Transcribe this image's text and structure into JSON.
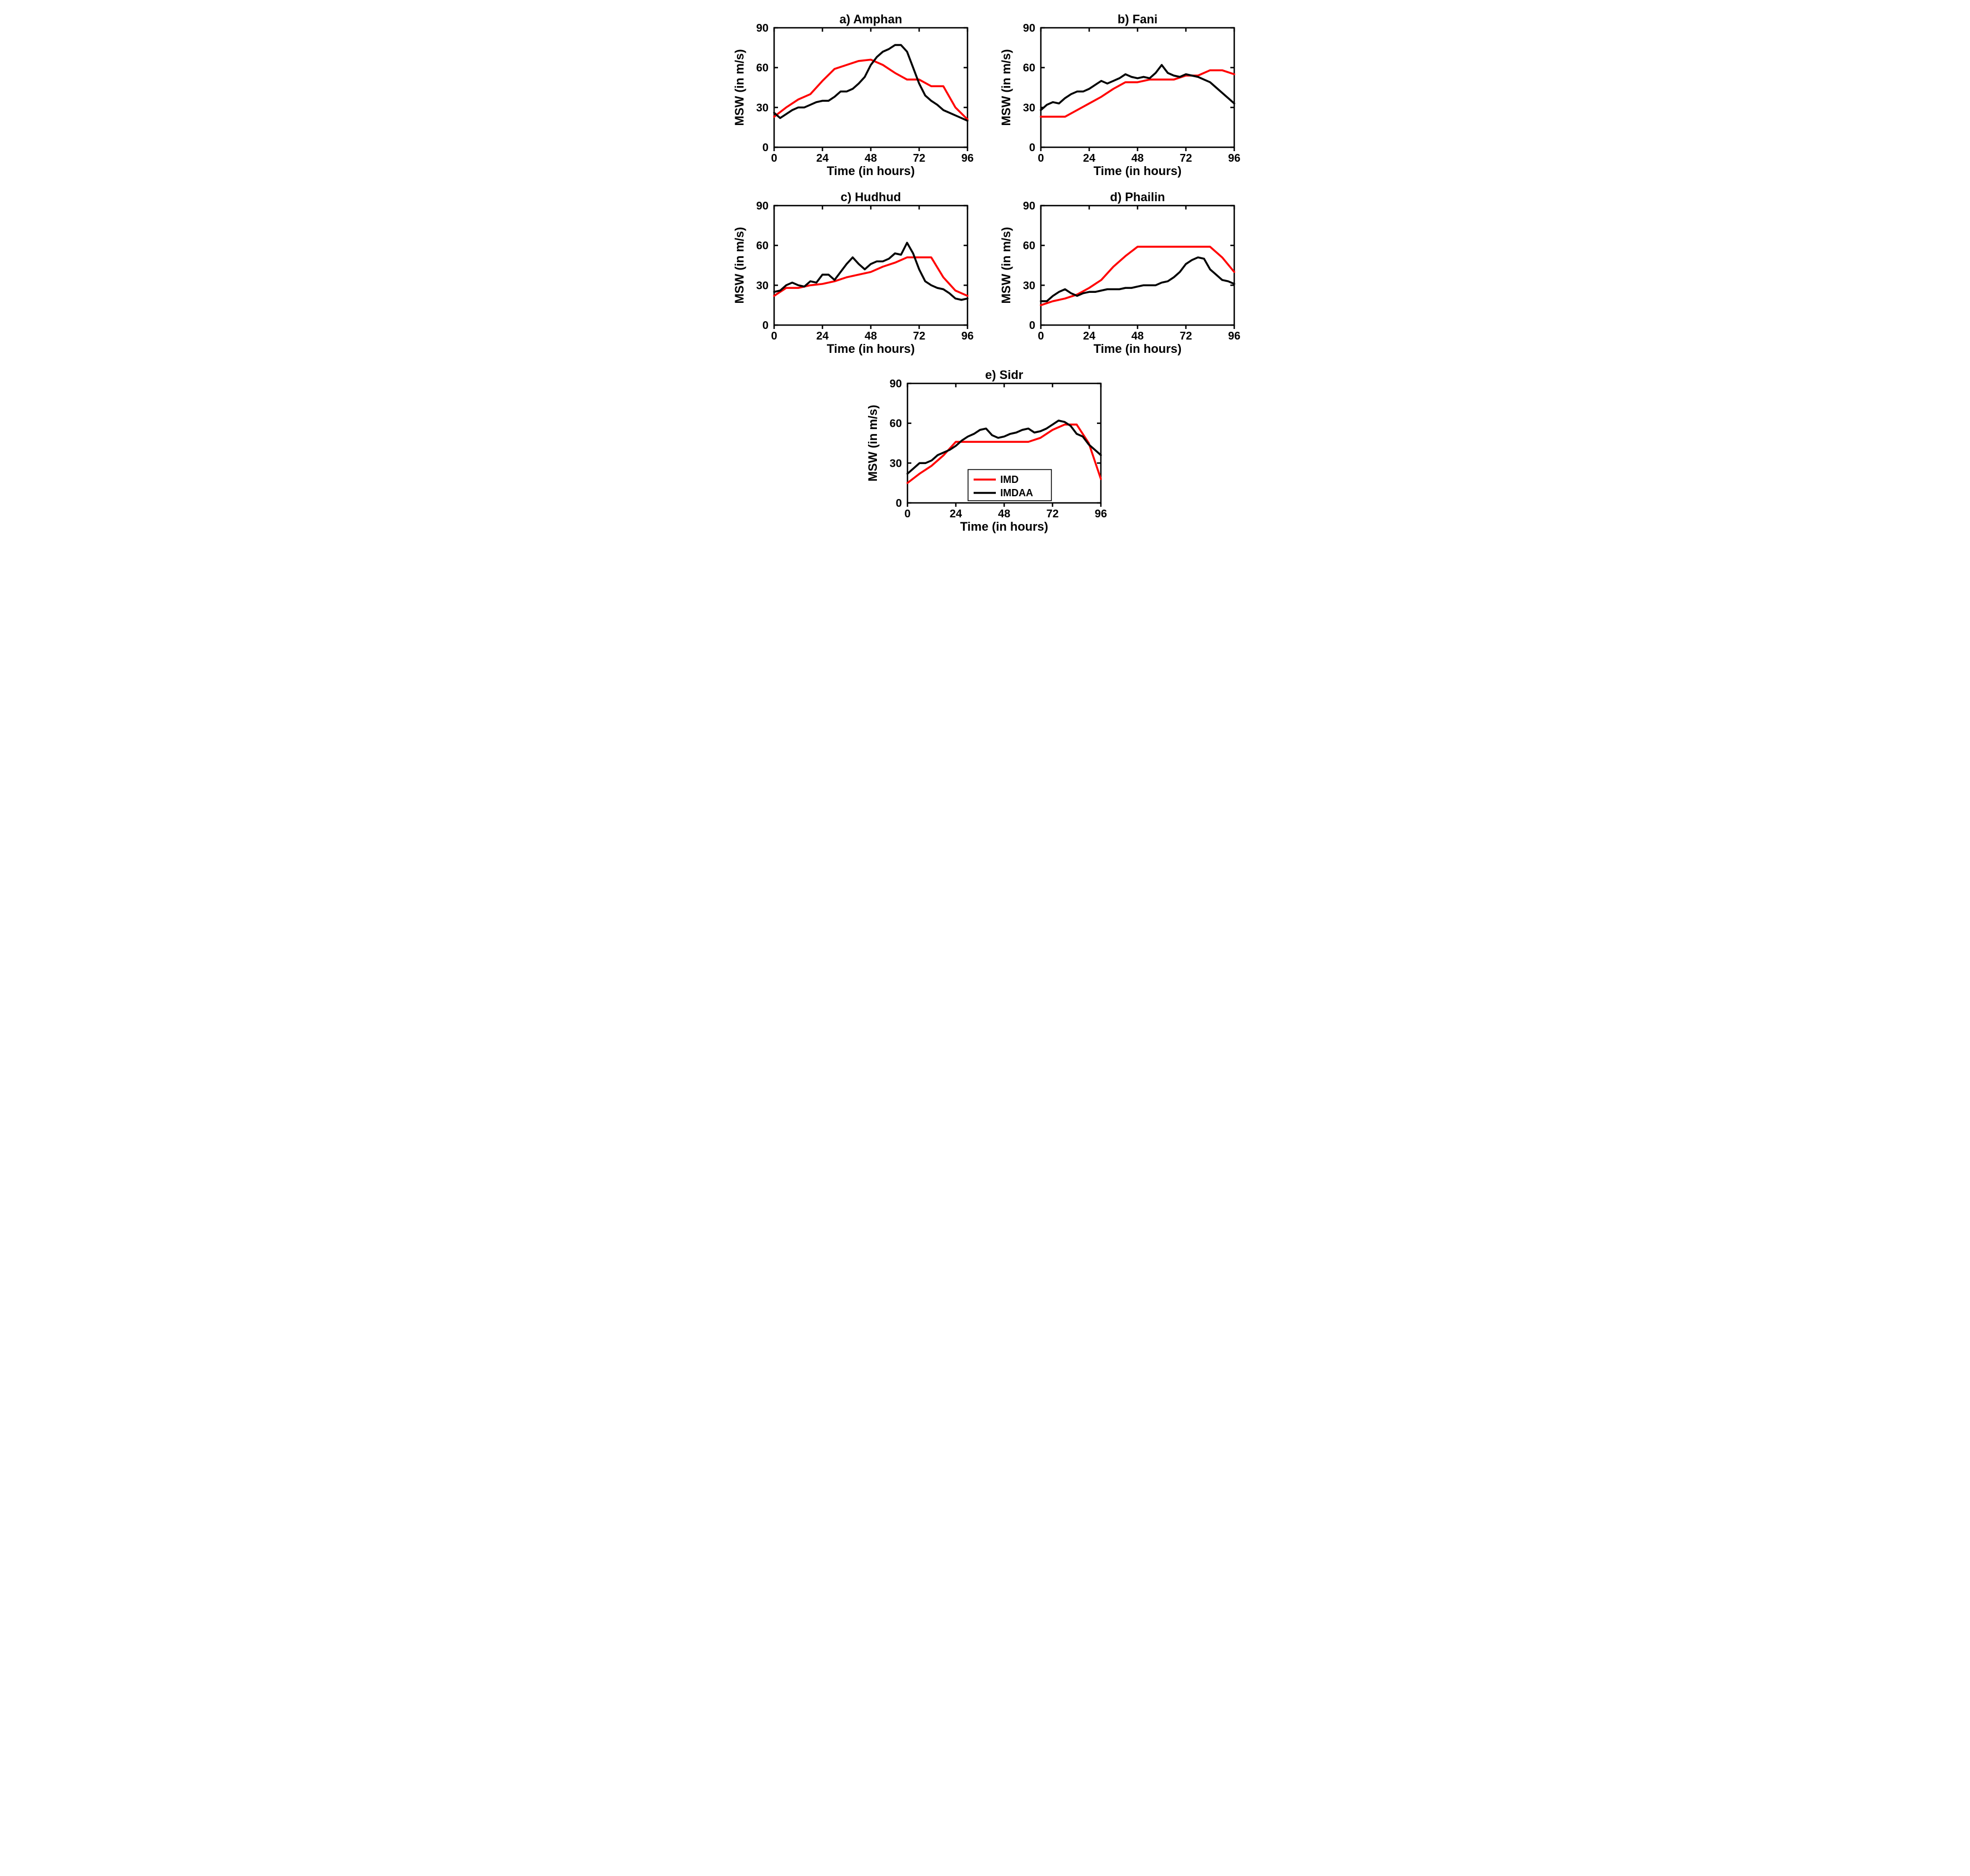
{
  "global": {
    "xlabel": "Time (in hours)",
    "ylabel": "MSW (in m/s)",
    "xlim": [
      0,
      96
    ],
    "ylim": [
      0,
      90
    ],
    "xtick_step": 24,
    "ytick_step": 30,
    "axis_color": "#000000",
    "background_color": "#ffffff",
    "line_width": 3.5,
    "axis_line_width": 2.5,
    "tick_fontsize": 20,
    "label_fontsize": 22,
    "title_fontsize": 22,
    "title_fontweight": "bold",
    "label_fontweight": "bold",
    "font_family": "Arial, Helvetica, sans-serif"
  },
  "series_meta": {
    "imd": {
      "label": "IMD",
      "color": "#ff0000"
    },
    "imdaa": {
      "label": "IMDAA",
      "color": "#000000"
    }
  },
  "legend": {
    "panel": "e",
    "box_stroke": "#000000",
    "box_fill": "#ffffff"
  },
  "panel_order": [
    "a",
    "b",
    "c",
    "d",
    "e"
  ],
  "panels": {
    "a": {
      "title": "a) Amphan",
      "imd": {
        "x": [
          0,
          6,
          12,
          18,
          24,
          30,
          36,
          42,
          48,
          54,
          60,
          66,
          72,
          78,
          84,
          90,
          96
        ],
        "y": [
          23,
          30,
          36,
          40,
          50,
          59,
          62,
          65,
          66,
          62,
          56,
          51,
          51,
          46,
          46,
          30,
          21
        ]
      },
      "imdaa": {
        "x": [
          0,
          3,
          6,
          9,
          12,
          15,
          18,
          21,
          24,
          27,
          30,
          33,
          36,
          39,
          42,
          45,
          48,
          51,
          54,
          57,
          60,
          63,
          66,
          69,
          72,
          75,
          78,
          81,
          84,
          87,
          90,
          93,
          96
        ],
        "y": [
          26,
          22,
          25,
          28,
          30,
          30,
          32,
          34,
          35,
          35,
          38,
          42,
          42,
          44,
          48,
          53,
          62,
          68,
          72,
          74,
          77,
          77,
          72,
          60,
          48,
          39,
          35,
          32,
          28,
          26,
          24,
          22,
          20
        ]
      }
    },
    "b": {
      "title": "b) Fani",
      "imd": {
        "x": [
          0,
          6,
          12,
          18,
          24,
          30,
          36,
          42,
          48,
          54,
          60,
          66,
          72,
          78,
          84,
          90,
          96
        ],
        "y": [
          23,
          23,
          23,
          28,
          33,
          38,
          44,
          49,
          49,
          51,
          51,
          51,
          54,
          54,
          58,
          58,
          55
        ]
      },
      "imdaa": {
        "x": [
          0,
          3,
          6,
          9,
          12,
          15,
          18,
          21,
          24,
          27,
          30,
          33,
          36,
          39,
          42,
          45,
          48,
          51,
          54,
          57,
          60,
          63,
          66,
          69,
          72,
          75,
          78,
          81,
          84,
          87,
          90,
          93,
          96
        ],
        "y": [
          28,
          32,
          34,
          33,
          37,
          40,
          42,
          42,
          44,
          47,
          50,
          48,
          50,
          52,
          55,
          53,
          52,
          53,
          52,
          56,
          62,
          56,
          54,
          53,
          55,
          54,
          53,
          51,
          49,
          45,
          41,
          37,
          33
        ]
      }
    },
    "c": {
      "title": "c) Hudhud",
      "imd": {
        "x": [
          0,
          6,
          12,
          18,
          24,
          30,
          36,
          42,
          48,
          54,
          60,
          66,
          72,
          78,
          84,
          90,
          96
        ],
        "y": [
          22,
          28,
          28,
          30,
          31,
          33,
          36,
          38,
          40,
          44,
          47,
          51,
          51,
          51,
          36,
          26,
          22
        ]
      },
      "imdaa": {
        "x": [
          0,
          3,
          6,
          9,
          12,
          15,
          18,
          21,
          24,
          27,
          30,
          33,
          36,
          39,
          42,
          45,
          48,
          51,
          54,
          57,
          60,
          63,
          66,
          69,
          72,
          75,
          78,
          81,
          84,
          87,
          90,
          93,
          96
        ],
        "y": [
          25,
          26,
          30,
          32,
          30,
          29,
          33,
          32,
          38,
          38,
          34,
          40,
          46,
          51,
          46,
          42,
          46,
          48,
          48,
          50,
          54,
          53,
          62,
          54,
          42,
          33,
          30,
          28,
          27,
          24,
          20,
          19,
          20
        ]
      }
    },
    "d": {
      "title": "d) Phailin",
      "imd": {
        "x": [
          0,
          6,
          12,
          18,
          24,
          30,
          36,
          42,
          48,
          54,
          60,
          66,
          72,
          78,
          84,
          90,
          96
        ],
        "y": [
          15,
          18,
          20,
          23,
          28,
          34,
          44,
          52,
          59,
          59,
          59,
          59,
          59,
          59,
          59,
          51,
          40
        ]
      },
      "imdaa": {
        "x": [
          0,
          3,
          6,
          9,
          12,
          15,
          18,
          21,
          24,
          27,
          30,
          33,
          36,
          39,
          42,
          45,
          48,
          51,
          54,
          57,
          60,
          63,
          66,
          69,
          72,
          75,
          78,
          81,
          84,
          87,
          90,
          93,
          96
        ],
        "y": [
          18,
          18,
          22,
          25,
          27,
          24,
          22,
          24,
          25,
          25,
          26,
          27,
          27,
          27,
          28,
          28,
          29,
          30,
          30,
          30,
          32,
          33,
          36,
          40,
          46,
          49,
          51,
          50,
          42,
          38,
          34,
          33,
          31
        ]
      }
    },
    "e": {
      "title": "e) Sidr",
      "imd": {
        "x": [
          0,
          6,
          12,
          18,
          24,
          30,
          36,
          42,
          48,
          54,
          60,
          66,
          72,
          78,
          84,
          90,
          96
        ],
        "y": [
          15,
          22,
          28,
          36,
          46,
          46,
          46,
          46,
          46,
          46,
          46,
          49,
          55,
          59,
          59,
          45,
          18
        ]
      },
      "imdaa": {
        "x": [
          0,
          3,
          6,
          9,
          12,
          15,
          18,
          21,
          24,
          27,
          30,
          33,
          36,
          39,
          42,
          45,
          48,
          51,
          54,
          57,
          60,
          63,
          66,
          69,
          72,
          75,
          78,
          81,
          84,
          87,
          90,
          93,
          96
        ],
        "y": [
          22,
          26,
          30,
          30,
          32,
          36,
          38,
          40,
          43,
          47,
          50,
          52,
          55,
          56,
          51,
          49,
          50,
          52,
          53,
          55,
          56,
          53,
          54,
          56,
          59,
          62,
          61,
          58,
          52,
          50,
          44,
          40,
          36
        ]
      }
    }
  }
}
